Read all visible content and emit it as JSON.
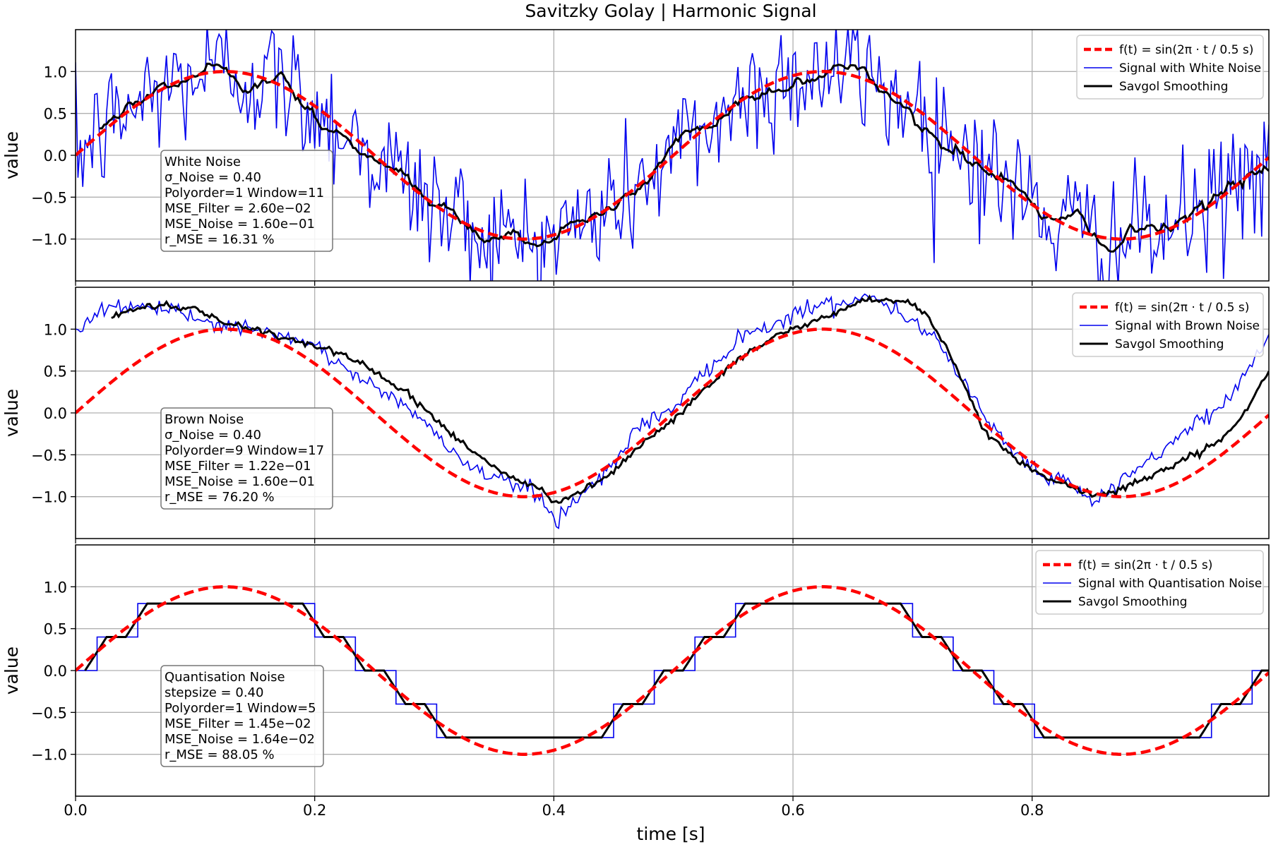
{
  "figure": {
    "title": "Savitzky Golay | Harmonic Signal",
    "xlabel": "time [s]"
  },
  "colors": {
    "reference": "#ff0000",
    "signal": "#0000ee",
    "smooth": "#000000",
    "grid": "#b0b0b0"
  },
  "chart_data": [
    {
      "type": "line",
      "title": "",
      "xlabel": "",
      "ylabel": "value",
      "xlim": [
        0,
        0.998
      ],
      "ylim": [
        -1.5,
        1.5
      ],
      "grid": true,
      "legend_position": "top-right",
      "xticks": [
        0.0,
        0.2,
        0.4,
        0.6,
        0.8
      ],
      "yticks": [
        1.0,
        0.5,
        0.0,
        -0.5,
        -1.0
      ],
      "legend": {
        "reference": "f(t) = sin(2π · t / 0.5 s)",
        "signal": "Signal with White Noise",
        "smooth": "Savgol Smoothing"
      },
      "info": [
        "White Noise",
        "σ_Noise = 0.40",
        "Polyorder=1 Window=11",
        "MSE_Filter = 2.60e−02",
        "MSE_Noise = 1.60e−01",
        "r_MSE = 16.31 %"
      ],
      "series": [
        {
          "name": "f(t) = sin(2π · t / 0.5 s)",
          "function": "sin(2*pi*t/0.5)",
          "x_range": [
            0,
            0.998
          ]
        },
        {
          "name": "Signal with White Noise",
          "noise_type": "white",
          "sigma": 0.4
        },
        {
          "name": "Savgol Smoothing",
          "polyorder": 1,
          "window": 11
        }
      ]
    },
    {
      "type": "line",
      "title": "",
      "xlabel": "",
      "ylabel": "value",
      "xlim": [
        0,
        0.998
      ],
      "ylim": [
        -1.5,
        1.5
      ],
      "grid": true,
      "legend_position": "top-right",
      "xticks": [
        0.0,
        0.2,
        0.4,
        0.6,
        0.8
      ],
      "yticks": [
        1.0,
        0.5,
        0.0,
        -0.5,
        -1.0
      ],
      "legend": {
        "reference": "f(t) = sin(2π · t / 0.5 s)",
        "signal": "Signal with Brown Noise",
        "smooth": "Savgol Smoothing"
      },
      "info": [
        "Brown Noise",
        "σ_Noise = 0.40",
        "Polyorder=9 Window=17",
        "MSE_Filter = 1.22e−01",
        "MSE_Noise = 1.60e−01",
        "r_MSE = 76.20 %"
      ],
      "series": [
        {
          "name": "f(t) = sin(2π · t / 0.5 s)",
          "function": "sin(2*pi*t/0.5)",
          "x_range": [
            0,
            0.998
          ]
        },
        {
          "name": "Signal with Brown Noise",
          "noise_type": "brown",
          "sigma": 0.4,
          "anchors": [
            [
              0,
              1.0
            ],
            [
              0.03,
              1.3
            ],
            [
              0.06,
              1.25
            ],
            [
              0.1,
              1.15
            ],
            [
              0.13,
              1.02
            ],
            [
              0.16,
              0.95
            ],
            [
              0.2,
              0.8
            ],
            [
              0.24,
              0.4
            ],
            [
              0.28,
              0.05
            ],
            [
              0.31,
              -0.4
            ],
            [
              0.34,
              -0.72
            ],
            [
              0.37,
              -0.85
            ],
            [
              0.39,
              -1.02
            ],
            [
              0.4,
              -1.3
            ],
            [
              0.42,
              -1.0
            ],
            [
              0.45,
              -0.62
            ],
            [
              0.47,
              -0.15
            ],
            [
              0.5,
              0.05
            ],
            [
              0.52,
              0.4
            ],
            [
              0.56,
              0.95
            ],
            [
              0.59,
              1.1
            ],
            [
              0.61,
              1.25
            ],
            [
              0.64,
              1.3
            ],
            [
              0.66,
              1.42
            ],
            [
              0.69,
              1.2
            ],
            [
              0.72,
              0.9
            ],
            [
              0.75,
              0.2
            ],
            [
              0.78,
              -0.4
            ],
            [
              0.81,
              -0.75
            ],
            [
              0.83,
              -0.85
            ],
            [
              0.85,
              -1.05
            ],
            [
              0.87,
              -0.9
            ],
            [
              0.9,
              -0.55
            ],
            [
              0.93,
              -0.2
            ],
            [
              0.96,
              0.1
            ],
            [
              0.98,
              0.5
            ],
            [
              0.998,
              0.95
            ]
          ]
        },
        {
          "name": "Savgol Smoothing",
          "polyorder": 9,
          "window": 17,
          "anchors": [
            [
              0.03,
              1.15
            ],
            [
              0.06,
              1.28
            ],
            [
              0.1,
              1.25
            ],
            [
              0.13,
              1.05
            ],
            [
              0.16,
              0.95
            ],
            [
              0.2,
              0.8
            ],
            [
              0.24,
              0.6
            ],
            [
              0.28,
              0.2
            ],
            [
              0.31,
              -0.2
            ],
            [
              0.34,
              -0.55
            ],
            [
              0.37,
              -0.8
            ],
            [
              0.39,
              -0.9
            ],
            [
              0.4,
              -1.12
            ],
            [
              0.42,
              -0.95
            ],
            [
              0.45,
              -0.7
            ],
            [
              0.47,
              -0.4
            ],
            [
              0.5,
              -0.08
            ],
            [
              0.52,
              0.2
            ],
            [
              0.56,
              0.7
            ],
            [
              0.59,
              0.95
            ],
            [
              0.61,
              1.05
            ],
            [
              0.64,
              1.22
            ],
            [
              0.66,
              1.35
            ],
            [
              0.69,
              1.35
            ],
            [
              0.71,
              1.2
            ],
            [
              0.73,
              0.75
            ],
            [
              0.76,
              -0.2
            ],
            [
              0.79,
              -0.6
            ],
            [
              0.82,
              -0.82
            ],
            [
              0.85,
              -1.0
            ],
            [
              0.87,
              -0.92
            ],
            [
              0.9,
              -0.75
            ],
            [
              0.93,
              -0.55
            ],
            [
              0.96,
              -0.3
            ],
            [
              0.98,
              0.05
            ],
            [
              0.998,
              0.5
            ]
          ]
        }
      ]
    },
    {
      "type": "line",
      "title": "",
      "xlabel": "time [s]",
      "ylabel": "value",
      "xlim": [
        0,
        0.998
      ],
      "ylim": [
        -1.5,
        1.5
      ],
      "grid": true,
      "legend_position": "top-right",
      "xticks": [
        0.0,
        0.2,
        0.4,
        0.6,
        0.8
      ],
      "xticklabels": [
        "0.0",
        "0.2",
        "0.4",
        "0.6",
        "0.8"
      ],
      "yticks": [
        1.0,
        0.5,
        0.0,
        -0.5,
        -1.0
      ],
      "legend": {
        "reference": "f(t) = sin(2π · t / 0.5 s)",
        "signal": "Signal with Quantisation Noise",
        "smooth": "Savgol Smoothing"
      },
      "info": [
        "Quantisation Noise",
        "stepsize = 0.40",
        "Polyorder=1 Window=5",
        "MSE_Filter = 1.45e−02",
        "MSE_Noise = 1.64e−02",
        "r_MSE = 88.05 %"
      ],
      "series": [
        {
          "name": "f(t) = sin(2π · t / 0.5 s)",
          "function": "sin(2*pi*t/0.5)",
          "x_range": [
            0,
            0.998
          ]
        },
        {
          "name": "Signal with Quantisation Noise",
          "noise_type": "quantisation",
          "stepsize": 0.4
        },
        {
          "name": "Savgol Smoothing",
          "polyorder": 1,
          "window": 5
        }
      ]
    }
  ]
}
